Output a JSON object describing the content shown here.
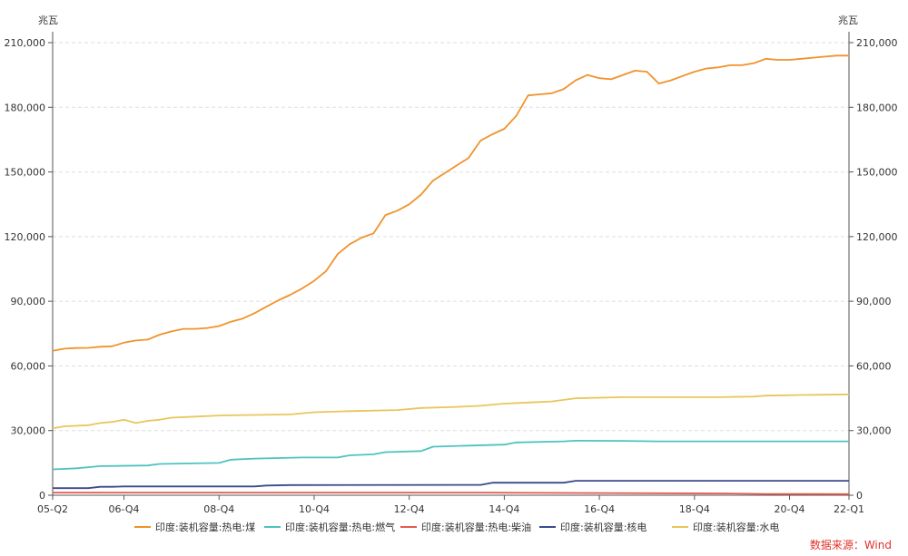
{
  "chart_data": {
    "type": "line",
    "y_unit_left": "兆瓦",
    "y_unit_right": "兆瓦",
    "ylim": [
      0,
      210000
    ],
    "yticks": [
      0,
      30000,
      60000,
      90000,
      120000,
      150000,
      180000,
      210000
    ],
    "ytick_labels": [
      "0",
      "30,000",
      "60,000",
      "90,000",
      "120,000",
      "150,000",
      "180,000",
      "210,000"
    ],
    "x_range": [
      "05-Q2",
      "22-Q1"
    ],
    "x_tick_labels": [
      "05-Q2",
      "06-Q4",
      "08-Q4",
      "10-Q4",
      "12-Q4",
      "14-Q4",
      "16-Q4",
      "18-Q4",
      "20-Q4",
      "22-Q1"
    ],
    "x_tick_positions": [
      0,
      6,
      14,
      22,
      30,
      38,
      46,
      54,
      62,
      67
    ],
    "grid": "horizontal-dashed",
    "legend_position": "bottom",
    "source": "数据来源：Wind",
    "series": [
      {
        "name": "印度:装机容量:热电:煤",
        "color": "#f0932b",
        "points": [
          [
            0,
            67000
          ],
          [
            1,
            68000
          ],
          [
            2,
            68300
          ],
          [
            3,
            68400
          ],
          [
            4,
            68900
          ],
          [
            5,
            69100
          ],
          [
            6,
            70800
          ],
          [
            7,
            71800
          ],
          [
            8,
            72200
          ],
          [
            9,
            74500
          ],
          [
            10,
            76000
          ],
          [
            11,
            77200
          ],
          [
            12,
            77200
          ],
          [
            13,
            77600
          ],
          [
            14,
            78500
          ],
          [
            15,
            80500
          ],
          [
            16,
            82000
          ],
          [
            17,
            84500
          ],
          [
            18,
            87500
          ],
          [
            19,
            90500
          ],
          [
            20,
            93000
          ],
          [
            21,
            96000
          ],
          [
            22,
            99500
          ],
          [
            23,
            104000
          ],
          [
            24,
            112000
          ],
          [
            25,
            116500
          ],
          [
            26,
            119500
          ],
          [
            27,
            121500
          ],
          [
            28,
            130000
          ],
          [
            29,
            132000
          ],
          [
            30,
            135000
          ],
          [
            31,
            139500
          ],
          [
            32,
            146000
          ],
          [
            33,
            149500
          ],
          [
            34,
            153000
          ],
          [
            35,
            156500
          ],
          [
            36,
            164500
          ],
          [
            37,
            167500
          ],
          [
            38,
            170000
          ],
          [
            39,
            176000
          ],
          [
            40,
            185500
          ],
          [
            41,
            186000
          ],
          [
            42,
            186500
          ],
          [
            43,
            188500
          ],
          [
            44,
            192500
          ],
          [
            45,
            195000
          ],
          [
            46,
            193500
          ],
          [
            47,
            193000
          ],
          [
            48,
            195000
          ],
          [
            49,
            197000
          ],
          [
            50,
            196500
          ],
          [
            51,
            191000
          ],
          [
            52,
            192500
          ],
          [
            53,
            194500
          ],
          [
            54,
            196500
          ],
          [
            55,
            198000
          ],
          [
            56,
            198500
          ],
          [
            57,
            199500
          ],
          [
            58,
            199500
          ],
          [
            59,
            200500
          ],
          [
            60,
            202500
          ],
          [
            61,
            202000
          ],
          [
            62,
            202000
          ],
          [
            63,
            202500
          ],
          [
            64,
            203000
          ],
          [
            65,
            203500
          ],
          [
            66,
            204000
          ],
          [
            67,
            204000
          ]
        ]
      },
      {
        "name": "印度:装机容量:热电:燃气",
        "color": "#4ec3bf",
        "points": [
          [
            0,
            12000
          ],
          [
            2,
            12500
          ],
          [
            3,
            13000
          ],
          [
            4,
            13500
          ],
          [
            8,
            13800
          ],
          [
            9,
            14500
          ],
          [
            14,
            15000
          ],
          [
            15,
            16500
          ],
          [
            17,
            17000
          ],
          [
            21,
            17500
          ],
          [
            24,
            17500
          ],
          [
            25,
            18500
          ],
          [
            27,
            19000
          ],
          [
            28,
            20000
          ],
          [
            31,
            20500
          ],
          [
            32,
            22500
          ],
          [
            35,
            23000
          ],
          [
            38,
            23500
          ],
          [
            39,
            24500
          ],
          [
            43,
            25000
          ],
          [
            44,
            25300
          ],
          [
            48,
            25200
          ],
          [
            51,
            25000
          ],
          [
            58,
            25000
          ],
          [
            67,
            25000
          ]
        ]
      },
      {
        "name": "印度:装机容量:热电:柴油",
        "color": "#e35a50",
        "points": [
          [
            0,
            1200
          ],
          [
            20,
            1200
          ],
          [
            36,
            1200
          ],
          [
            47,
            1000
          ],
          [
            57,
            800
          ],
          [
            60,
            600
          ],
          [
            67,
            500
          ]
        ]
      },
      {
        "name": "印度:装机容量:核电",
        "color": "#3b4a8c",
        "points": [
          [
            0,
            3300
          ],
          [
            3,
            3300
          ],
          [
            4,
            3900
          ],
          [
            5,
            3900
          ],
          [
            6,
            4100
          ],
          [
            17,
            4100
          ],
          [
            18,
            4500
          ],
          [
            20,
            4700
          ],
          [
            36,
            4800
          ],
          [
            37,
            5800
          ],
          [
            43,
            5800
          ],
          [
            44,
            6700
          ],
          [
            67,
            6700
          ]
        ]
      },
      {
        "name": "印度:装机容量:水电",
        "color": "#e8c65a",
        "points": [
          [
            0,
            31000
          ],
          [
            1,
            32000
          ],
          [
            3,
            32500
          ],
          [
            4,
            33500
          ],
          [
            5,
            34000
          ],
          [
            6,
            35000
          ],
          [
            7,
            33500
          ],
          [
            8,
            34500
          ],
          [
            9,
            35000
          ],
          [
            10,
            36000
          ],
          [
            12,
            36500
          ],
          [
            14,
            37000
          ],
          [
            20,
            37500
          ],
          [
            22,
            38500
          ],
          [
            25,
            39000
          ],
          [
            29,
            39500
          ],
          [
            31,
            40500
          ],
          [
            34,
            41000
          ],
          [
            36,
            41500
          ],
          [
            38,
            42500
          ],
          [
            40,
            43000
          ],
          [
            42,
            43500
          ],
          [
            44,
            45000
          ],
          [
            48,
            45500
          ],
          [
            52,
            45500
          ],
          [
            56,
            45500
          ],
          [
            59,
            45800
          ],
          [
            60,
            46200
          ],
          [
            63,
            46500
          ],
          [
            67,
            46800
          ]
        ]
      }
    ]
  }
}
